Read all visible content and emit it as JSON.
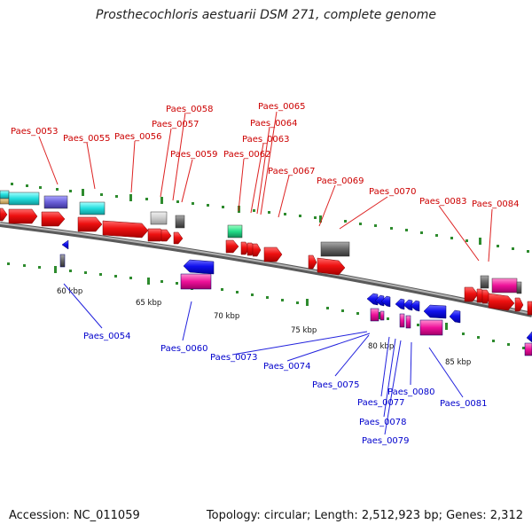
{
  "title": "Prosthecochloris aestuarii DSM 271, complete genome",
  "footer": {
    "accession": "Accession: NC_011059",
    "topology": "Topology: circular; Length: 2,512,923 bp; Genes: 2,312"
  },
  "colors": {
    "forward_label": "#cc0000",
    "reverse_label": "#0000cc",
    "backbone": "#8c8c8c",
    "tick": "#2e8b2e",
    "gene_forward": "#ee1111",
    "gene_reverse": "#1111ee"
  },
  "scale_labels": [
    "60 kbp",
    "65 kbp",
    "70 kbp",
    "75 kbp",
    "80 kbp",
    "85 kbp"
  ],
  "forward_labels": [
    "Paes_0053",
    "Paes_0055",
    "Paes_0056",
    "Paes_0057",
    "Paes_0058",
    "Paes_0059",
    "Paes_0062",
    "Paes_0063",
    "Paes_0064",
    "Paes_0065",
    "Paes_0067",
    "Paes_0069",
    "Paes_0070",
    "Paes_0083",
    "Paes_0084"
  ],
  "reverse_labels": [
    "Paes_0054",
    "Paes_0060",
    "Paes_0073",
    "Paes_0074",
    "Paes_0075",
    "Paes_0077",
    "Paes_0078",
    "Paes_0079",
    "Paes_0080",
    "Paes_0081"
  ]
}
